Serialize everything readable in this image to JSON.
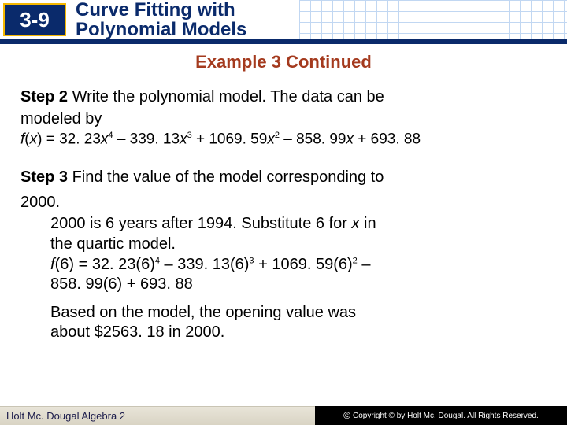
{
  "header": {
    "section_number": "3-9",
    "title_line1": "Curve Fitting with",
    "title_line2": "Polynomial Models",
    "badge_bg": "#0a2a6b",
    "badge_border": "#f5b800",
    "badge_text_color": "#ffffff",
    "title_color": "#0a2a6b",
    "grid_color": "#8fb8e8"
  },
  "subtitle": {
    "text": "Example 3 Continued",
    "color": "#a43a1e",
    "fontsize": 22
  },
  "step2": {
    "label": "Step 2",
    "text_part1": " Write the polynomial model. The data can be",
    "text_part2": "modeled by",
    "equation": {
      "prefix": "f",
      "var_open": "(",
      "var": "x",
      "var_close": ") = ",
      "c4": "32. 23",
      "t4": "x",
      "e4": "4",
      "s1": " – ",
      "c3": "339. 13",
      "t3": "x",
      "e3": "3",
      "s2": " + ",
      "c2": "1069. 59",
      "t2": "x",
      "e2": "2",
      "s3": " – ",
      "c1": "858. 99",
      "t1": "x",
      "s4": " + ",
      "c0": "693. 88"
    }
  },
  "step3": {
    "label": "Step 3",
    "text_part1": " Find the value of the model corresponding to",
    "text_part2": "2000.",
    "explain_line1": "2000 is 6 years after 1994. Substitute 6 for ",
    "explain_var": "x",
    "explain_line1b": " in",
    "explain_line2": "the quartic model.",
    "eval": {
      "prefix": "f",
      "arg": "(6) = ",
      "c4": "32. 23(6)",
      "e4": "4",
      "s1": " – ",
      "c3": "339. 13(6)",
      "e3": "3",
      "s2": " + ",
      "c2": "1069. 59(6)",
      "e2": "2",
      "s3": " –",
      "line2": "858. 99(6) + 693. 88"
    },
    "result_line1": "Based on the model, the opening value was",
    "result_line2": "about $2563. 18 in 2000."
  },
  "footer": {
    "left": "Holt Mc. Dougal Algebra 2",
    "right": "Copyright © by Holt Mc. Dougal. All Rights Reserved."
  },
  "colors": {
    "body_bg": "#ffffff",
    "text": "#000000",
    "bar": "#0a2a6b",
    "footer_left_bg": "#d9d4c4",
    "footer_right_bg": "#000000"
  },
  "fontsize": {
    "body": 20,
    "equation": 19,
    "header_title": 24,
    "badge": 26
  }
}
